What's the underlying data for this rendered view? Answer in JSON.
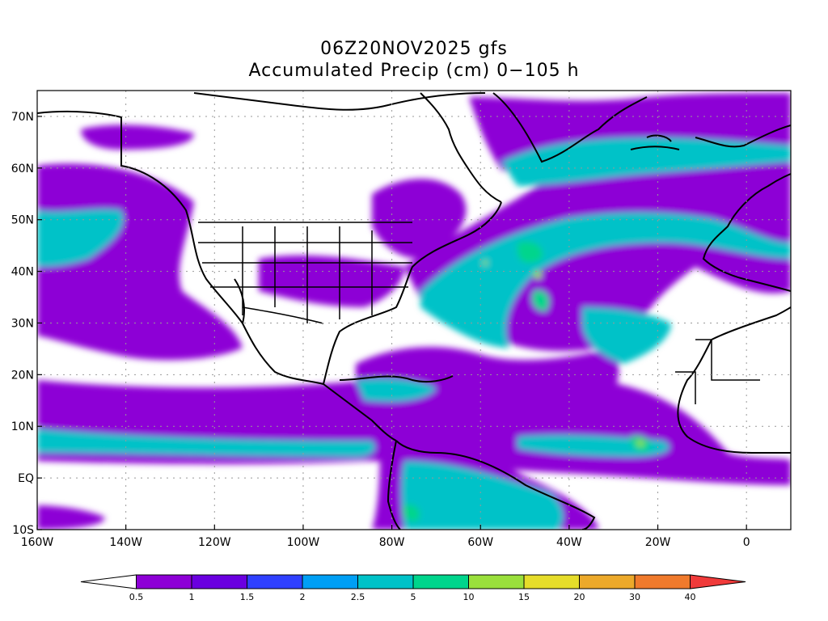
{
  "title": {
    "line1": "06Z20NOV2025 gfs",
    "line2": "Accumulated Precip (cm) 0−105 h"
  },
  "map": {
    "lon_range": [
      -160,
      10
    ],
    "lat_range": [
      -10,
      75
    ],
    "lat_ticks": [
      {
        "value": 70,
        "label": "70N"
      },
      {
        "value": 60,
        "label": "60N"
      },
      {
        "value": 50,
        "label": "50N"
      },
      {
        "value": 40,
        "label": "40N"
      },
      {
        "value": 30,
        "label": "30N"
      },
      {
        "value": 20,
        "label": "20N"
      },
      {
        "value": 10,
        "label": "10N"
      },
      {
        "value": 0,
        "label": "EQ"
      },
      {
        "value": -10,
        "label": "10S"
      }
    ],
    "lon_ticks": [
      {
        "value": -160,
        "label": "160W"
      },
      {
        "value": -140,
        "label": "140W"
      },
      {
        "value": -120,
        "label": "120W"
      },
      {
        "value": -100,
        "label": "100W"
      },
      {
        "value": -80,
        "label": "80W"
      },
      {
        "value": -60,
        "label": "60W"
      },
      {
        "value": -40,
        "label": "40W"
      },
      {
        "value": -20,
        "label": "20W"
      },
      {
        "value": 0,
        "label": "0"
      }
    ]
  },
  "colorbar": {
    "labels": [
      "0.5",
      "1",
      "1.5",
      "2",
      "2.5",
      "5",
      "10",
      "15",
      "20",
      "30",
      "40"
    ],
    "colors": [
      "#ffffff",
      "#8d00d6",
      "#6a00e0",
      "#2f40ff",
      "#009ff5",
      "#00c2c8",
      "#00d58c",
      "#9ae03c",
      "#e6dd2a",
      "#eca92a",
      "#f07a2c",
      "#f03a3a"
    ]
  }
}
